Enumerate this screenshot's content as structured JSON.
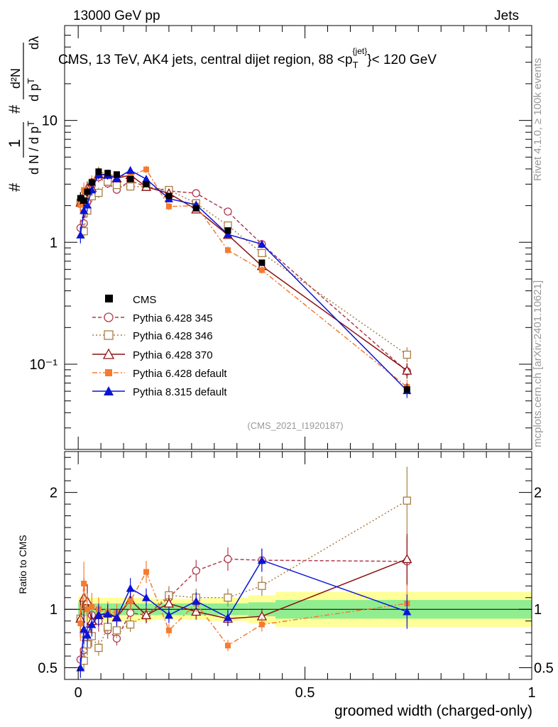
{
  "header": {
    "left": "13000 GeV pp",
    "right": "Jets"
  },
  "side_text": {
    "rivet": "Rivet 4.1.0, ≥ 100k events",
    "mcplots": "mcplots.cern.ch [arXiv:2401.10621]"
  },
  "chart_data": {
    "type": "scatter",
    "title": "CMS, 13 TeV, AK4 jets, central dijet region, 88 <p_T^{jet}< 120 GeV",
    "title_parts": {
      "main": "CMS, 13 TeV, AK4 jets, central dijet region, 88 <p",
      "sub": "T",
      "sup": "{jet}",
      "tail": "}< 120 GeV"
    },
    "analysis_tag": "(CMS_2021_I1920187)",
    "xlabel": "groomed width (charged-only)",
    "ylabel": "# 1/(d N / d p_T) # d²N/(d p_T dλ)",
    "ylabel_parts": {
      "hash": "#",
      "one": "1",
      "dN": "d N / d p",
      "T": "T",
      "d2N": "d²N",
      "dp": "d p",
      "dl": "dλ"
    },
    "ratio_ylabel": "Ratio to CMS",
    "xlim": [
      -0.03,
      1.0
    ],
    "ylim_main": [
      0.02,
      60
    ],
    "ylim_ratio": [
      0.4,
      2.35
    ],
    "x_ticks": [
      "0",
      "0.5",
      "1"
    ],
    "y_ticks_main": [
      "10⁻¹",
      "1",
      "10"
    ],
    "y_ticks_ratio": [
      "0.5",
      "1",
      "2"
    ],
    "x": [
      0.005,
      0.0125,
      0.02,
      0.03,
      0.045,
      0.065,
      0.085,
      0.115,
      0.15,
      0.2,
      0.26,
      0.33,
      0.405,
      0.725
    ],
    "bin_edges": [
      0.0,
      0.01,
      0.015,
      0.025,
      0.035,
      0.055,
      0.075,
      0.095,
      0.135,
      0.165,
      0.235,
      0.285,
      0.375,
      0.435,
      1.0
    ],
    "data": {
      "name": "CMS",
      "values": [
        2.3,
        2.2,
        2.6,
        3.1,
        3.8,
        3.7,
        3.6,
        3.3,
        3.0,
        2.4,
        1.9,
        1.25,
        0.68,
        0.062
      ]
    },
    "series": [
      {
        "name": "Pythia 6.428 345",
        "color": "#b13a4f",
        "dash": "5,3",
        "marker": "circle-open",
        "ratios": [
          0.57,
          0.65,
          0.82,
          0.95,
          0.9,
          0.82,
          0.75,
          0.97,
          0.95,
          1.1,
          1.33,
          1.43,
          1.42,
          1.41
        ]
      },
      {
        "name": "Pythia 6.428 346",
        "color": "#a87e43",
        "dash": "2,3",
        "marker": "square-open",
        "ratios": [
          0.92,
          0.56,
          0.7,
          0.77,
          0.67,
          0.85,
          0.82,
          0.87,
          0.95,
          1.12,
          1.1,
          1.1,
          1.2,
          1.93
        ]
      },
      {
        "name": "Pythia 6.428 370",
        "color": "#8c1010",
        "dash": "",
        "marker": "triangle-open",
        "ratios": [
          0.92,
          1.1,
          1.07,
          0.9,
          0.95,
          0.97,
          0.93,
          1.08,
          0.95,
          1.05,
          0.98,
          0.92,
          0.94,
          1.43
        ]
      },
      {
        "name": "Pythia 6.428 default",
        "color": "#f57b2f",
        "dash": "7,3,2,3",
        "marker": "square-filled",
        "ratios": [
          0.88,
          1.22,
          1.0,
          1.02,
          1.0,
          0.98,
          0.97,
          1.07,
          1.32,
          0.82,
          1.05,
          0.69,
          0.87,
          1.05
        ]
      },
      {
        "name": "Pythia 8.315 default",
        "color": "#0a14d6",
        "dash": "",
        "marker": "triangle-filled",
        "ratios": [
          0.5,
          0.83,
          0.78,
          0.87,
          0.95,
          0.96,
          0.93,
          1.18,
          1.1,
          0.95,
          1.07,
          0.93,
          1.42,
          0.98
        ]
      }
    ],
    "band_inner": [
      0.06,
      0.06,
      0.06,
      0.05,
      0.05,
      0.05,
      0.05,
      0.05,
      0.05,
      0.05,
      0.05,
      0.05,
      0.06,
      0.08
    ],
    "band_outer": [
      0.11,
      0.11,
      0.1,
      0.1,
      0.1,
      0.1,
      0.1,
      0.1,
      0.1,
      0.09,
      0.09,
      0.1,
      0.12,
      0.15
    ],
    "colors": {
      "band_inner": "#90ee90",
      "band_outer": "#ffff99",
      "data": "#000000"
    }
  }
}
